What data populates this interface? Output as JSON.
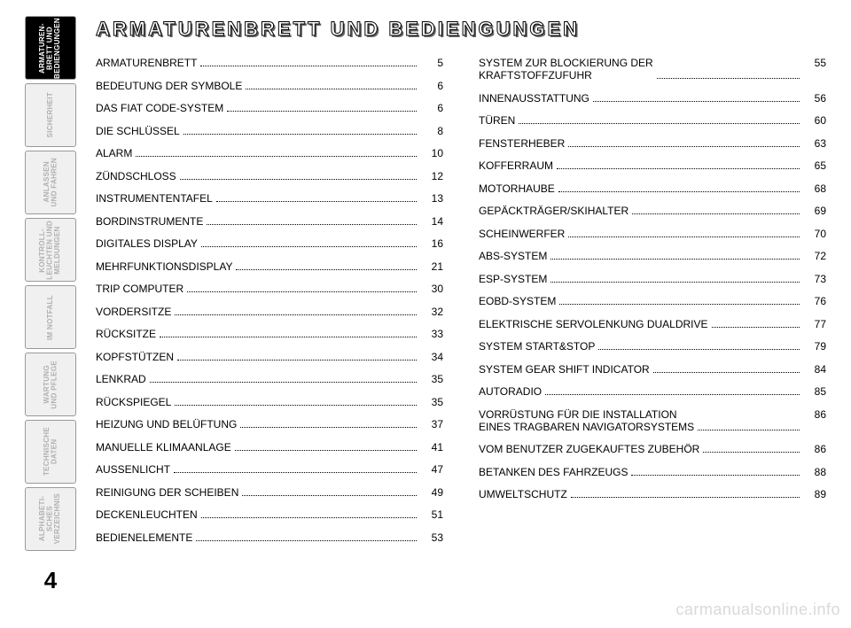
{
  "page_number": "4",
  "watermark": "carmanualsonline.info",
  "heading": "ARMATURENBRETT UND BEDIENGUNGEN",
  "sidebar": {
    "active_index": 0,
    "tabs": [
      {
        "label": "ARMATUREN-\nBRETT UND\nBEDIENGUNGEN"
      },
      {
        "label": "SICHERHEIT"
      },
      {
        "label": "ANLASSEN\nUND FAHREN"
      },
      {
        "label": "KONTROLL-\nLEUCHTEN UND\nMELDUNGEN"
      },
      {
        "label": "IM NOTFALL"
      },
      {
        "label": "WARTUNG\nUND PFLEGE"
      },
      {
        "label": "TECHNISCHE\nDATEN"
      },
      {
        "label": "ALPHABETI-\nSCHES\nVERZEICHNIS"
      }
    ]
  },
  "toc": {
    "left": [
      {
        "label": "ARMATURENBRETT",
        "page": "5"
      },
      {
        "label": "BEDEUTUNG DER SYMBOLE",
        "page": "6"
      },
      {
        "label": "DAS FIAT CODE-SYSTEM",
        "page": "6"
      },
      {
        "label": "DIE SCHLÜSSEL",
        "page": "8"
      },
      {
        "label": "ALARM",
        "page": "10"
      },
      {
        "label": "ZÜNDSCHLOSS",
        "page": "12"
      },
      {
        "label": "INSTRUMENTENTAFEL",
        "page": "13"
      },
      {
        "label": "BORDINSTRUMENTE",
        "page": "14"
      },
      {
        "label": "DIGITALES DISPLAY",
        "page": "16"
      },
      {
        "label": "MEHRFUNKTIONSDISPLAY",
        "page": "21"
      },
      {
        "label": "TRIP COMPUTER",
        "page": "30"
      },
      {
        "label": "VORDERSITZE",
        "page": "32"
      },
      {
        "label": "RÜCKSITZE",
        "page": "33"
      },
      {
        "label": "KOPFSTÜTZEN",
        "page": "34"
      },
      {
        "label": "LENKRAD",
        "page": "35"
      },
      {
        "label": "RÜCKSPIEGEL",
        "page": "35"
      },
      {
        "label": "HEIZUNG UND BELÜFTUNG",
        "page": "37"
      },
      {
        "label": "MANUELLE KLIMAANLAGE",
        "page": "41"
      },
      {
        "label": "AUSSENLICHT",
        "page": "47"
      },
      {
        "label": "REINIGUNG DER SCHEIBEN",
        "page": "49"
      },
      {
        "label": "DECKENLEUCHTEN",
        "page": "51"
      },
      {
        "label": "BEDIENELEMENTE",
        "page": "53"
      }
    ],
    "right": [
      {
        "label": "SYSTEM ZUR BLOCKIERUNG DER\nKRAFTSTOFFZUFUHR",
        "page": "55"
      },
      {
        "label": "INNENAUSSTATTUNG",
        "page": "56"
      },
      {
        "label": "TÜREN",
        "page": "60"
      },
      {
        "label": "FENSTERHEBER",
        "page": "63"
      },
      {
        "label": "KOFFERRAUM",
        "page": "65"
      },
      {
        "label": "MOTORHAUBE",
        "page": "68"
      },
      {
        "label": "GEPÄCKTRÄGER/SKIHALTER",
        "page": "69"
      },
      {
        "label": "SCHEINWERFER",
        "page": "70"
      },
      {
        "label": "ABS-SYSTEM",
        "page": "72"
      },
      {
        "label": "ESP-SYSTEM",
        "page": "73"
      },
      {
        "label": "EOBD-SYSTEM",
        "page": "76"
      },
      {
        "label": "ELEKTRISCHE SERVOLENKUNG DUALDRIVE",
        "page": "77"
      },
      {
        "label": "SYSTEM START&STOP",
        "page": "79"
      },
      {
        "label": "SYSTEM GEAR SHIFT INDICATOR",
        "page": "84"
      },
      {
        "label": "AUTORADIO",
        "page": "85"
      },
      {
        "label": "VORRÜSTUNG FÜR DIE INSTALLATION\nEINES TRAGBAREN NAVIGATORSYSTEMS",
        "page": "86"
      },
      {
        "label": "VOM BENUTZER ZUGEKAUFTES ZUBEHÖR",
        "page": "86"
      },
      {
        "label": "BETANKEN DES FAHRZEUGS",
        "page": "88"
      },
      {
        "label": "UMWELTSCHUTZ",
        "page": "89"
      }
    ]
  }
}
